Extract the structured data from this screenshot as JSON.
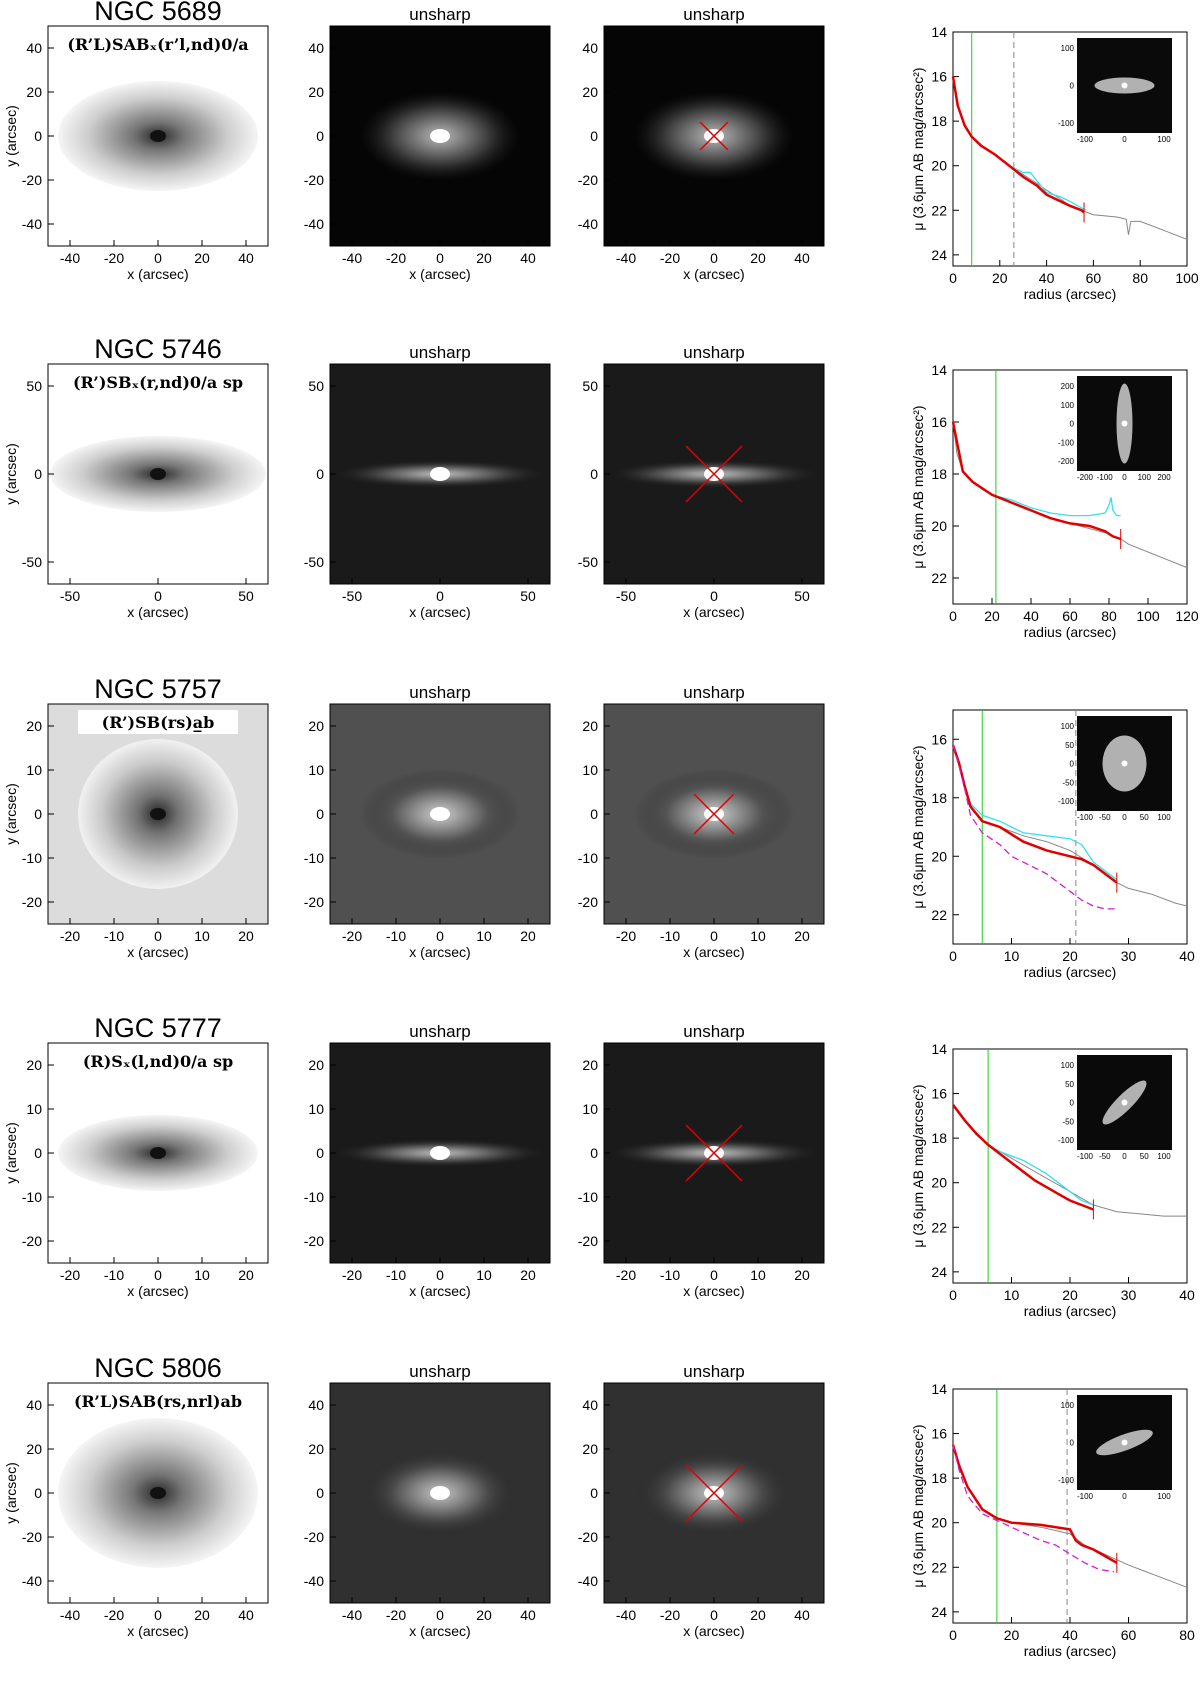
{
  "rows": [
    {
      "galaxy": "NGC 5689",
      "morphology": "(R’L)SABₓ(r’l,nd)0/a",
      "unsharp_label": "unsharp",
      "image_ticks_x": [
        "-40",
        "-20",
        "0",
        "20",
        "40"
      ],
      "image_ticks_y": [
        "40",
        "20",
        "0",
        "-20",
        "-40"
      ],
      "xlabel": "x (arcsec)",
      "ylabel": "y (arcsec)",
      "chart_data": {
        "type": "line",
        "xlabel": "radius (arcsec)",
        "ylabel": "μ (3.6μm AB mag/arcsec²)",
        "xlim": [
          0,
          100
        ],
        "ylim": [
          24.5,
          14
        ],
        "xticks": [
          "0",
          "20",
          "40",
          "60",
          "80",
          "100"
        ],
        "yticks": [
          "14",
          "16",
          "18",
          "20",
          "22",
          "24"
        ],
        "green_line_x": 8,
        "dashed_line_x": 26,
        "series": [
          {
            "color": "#888888",
            "x": [
              0,
              1,
              3,
              5,
              8,
              12,
              18,
              24,
              30,
              36,
              40,
              46,
              50,
              55,
              60,
              65,
              70,
              74,
              75,
              76,
              80,
              90,
              100
            ],
            "y": [
              16,
              16.6,
              17.6,
              18.2,
              18.7,
              19.1,
              19.5,
              20,
              20.4,
              20.8,
              21.1,
              21.5,
              21.8,
              22.0,
              22.2,
              22.25,
              22.3,
              22.4,
              23.1,
              22.5,
              22.5,
              22.9,
              23.3
            ]
          },
          {
            "color": "#33e0f0",
            "x": [
              0,
              2,
              5,
              8,
              12,
              18,
              24,
              28,
              30,
              33,
              36,
              40,
              46,
              50,
              55,
              57
            ],
            "y": [
              16,
              17.3,
              18.2,
              18.7,
              19.1,
              19.5,
              20.0,
              20.2,
              20.3,
              20.3,
              20.7,
              21.2,
              21.4,
              21.6,
              21.9,
              22.0
            ]
          },
          {
            "color": "#e00000",
            "x": [
              0,
              2,
              5,
              8,
              12,
              18,
              24,
              30,
              36,
              40,
              46,
              50,
              55,
              56
            ],
            "y": [
              16,
              17.3,
              18.2,
              18.7,
              19.1,
              19.5,
              20.0,
              20.5,
              20.9,
              21.3,
              21.6,
              21.8,
              22.0,
              22.1
            ]
          }
        ],
        "inset_ticks_x": [
          "-100",
          "0",
          "100"
        ],
        "inset_ticks_y": [
          "100",
          "0",
          "-100"
        ]
      }
    },
    {
      "galaxy": "NGC 5746",
      "morphology": "(R’)SBₓ(r,nd)0/a sp",
      "unsharp_label": "unsharp",
      "image_ticks_x": [
        "-50",
        "0",
        "50"
      ],
      "image_ticks_y": [
        "50",
        "0",
        "-50"
      ],
      "xlabel": "x (arcsec)",
      "ylabel": "y (arcsec)",
      "chart_data": {
        "type": "line",
        "xlabel": "radius (arcsec)",
        "ylabel": "μ (3.6μm AB mag/arcsec²)",
        "xlim": [
          0,
          120
        ],
        "ylim": [
          23,
          14
        ],
        "xticks": [
          "0",
          "20",
          "40",
          "60",
          "80",
          "100",
          "120"
        ],
        "yticks": [
          "14",
          "16",
          "18",
          "20",
          "22"
        ],
        "green_line_x": 22,
        "series": [
          {
            "color": "#888888",
            "x": [
              0,
              2,
              5,
              10,
              15,
              20,
              30,
              40,
              50,
              60,
              70,
              80,
              86,
              90,
              100,
              110,
              120
            ],
            "y": [
              16,
              17.2,
              17.9,
              18.3,
              18.6,
              18.8,
              19.1,
              19.4,
              19.7,
              19.9,
              20.1,
              20.3,
              20.5,
              20.7,
              21.0,
              21.3,
              21.6
            ]
          },
          {
            "color": "#33e0f0",
            "x": [
              0,
              5,
              10,
              20,
              30,
              40,
              50,
              60,
              70,
              78,
              80,
              81,
              82,
              84,
              86
            ],
            "y": [
              16,
              17.9,
              18.3,
              18.8,
              19.0,
              19.3,
              19.5,
              19.6,
              19.6,
              19.5,
              19.2,
              18.9,
              19.4,
              19.6,
              19.6
            ]
          },
          {
            "color": "#e00000",
            "x": [
              0,
              5,
              10,
              20,
              30,
              40,
              50,
              60,
              70,
              78,
              82,
              86
            ],
            "y": [
              16,
              17.9,
              18.3,
              18.8,
              19.1,
              19.4,
              19.7,
              19.9,
              20.0,
              20.2,
              20.4,
              20.5
            ]
          }
        ],
        "inset_ticks_x": [
          "-200",
          "-100",
          "0",
          "100",
          "200"
        ],
        "inset_ticks_y": [
          "200",
          "100",
          "0",
          "-100",
          "-200"
        ]
      }
    },
    {
      "galaxy": "NGC 5757",
      "morphology": "(R’)SB(rs)a̲b",
      "unsharp_label": "unsharp",
      "image_ticks_x": [
        "-20",
        "-10",
        "0",
        "10",
        "20"
      ],
      "image_ticks_y": [
        "20",
        "10",
        "0",
        "-10",
        "-20"
      ],
      "xlabel": "x (arcsec)",
      "ylabel": "y (arcsec)",
      "chart_data": {
        "type": "line",
        "xlabel": "radius (arcsec)",
        "ylabel": "μ (3.6μm AB mag/arcsec²)",
        "xlim": [
          0,
          40
        ],
        "ylim": [
          23,
          15
        ],
        "xticks": [
          "0",
          "10",
          "20",
          "30",
          "40"
        ],
        "yticks": [
          "16",
          "18",
          "20",
          "22"
        ],
        "green_line_x": 5,
        "dashed_line_x": 21,
        "series": [
          {
            "color": "#888888",
            "x": [
              0,
              1,
              2,
              3,
              5,
              8,
              12,
              16,
              20,
              24,
              28,
              30,
              34,
              38,
              40
            ],
            "y": [
              16.2,
              16.8,
              17.6,
              18.3,
              18.8,
              19.0,
              19.3,
              19.5,
              19.8,
              20.3,
              20.9,
              21.1,
              21.3,
              21.6,
              21.7
            ]
          },
          {
            "color": "#33e0f0",
            "x": [
              0,
              1,
              2,
              3,
              5,
              8,
              12,
              16,
              20,
              22,
              24,
              28
            ],
            "y": [
              16.2,
              16.8,
              17.6,
              18.2,
              18.6,
              18.8,
              19.2,
              19.3,
              19.4,
              19.6,
              20.2,
              20.8
            ]
          },
          {
            "color": "#e00000",
            "x": [
              0,
              1,
              2,
              3,
              5,
              8,
              12,
              16,
              20,
              22,
              24,
              28
            ],
            "y": [
              16.2,
              16.8,
              17.6,
              18.3,
              18.8,
              19.0,
              19.5,
              19.8,
              20.0,
              20.1,
              20.3,
              20.9
            ]
          },
          {
            "color": "#d020d0",
            "dashed": true,
            "x": [
              0,
              1,
              2,
              3,
              5,
              8,
              10,
              12,
              14,
              16,
              18,
              20,
              22,
              24,
              26,
              28
            ],
            "y": [
              16.2,
              16.9,
              17.7,
              18.6,
              19.2,
              19.6,
              20.0,
              20.2,
              20.4,
              20.6,
              20.9,
              21.2,
              21.5,
              21.7,
              21.8,
              21.8
            ]
          }
        ],
        "inset_ticks_x": [
          "-100",
          "-50",
          "0",
          "50",
          "100"
        ],
        "inset_ticks_y": [
          "100",
          "50",
          "0",
          "-50",
          "-100"
        ]
      }
    },
    {
      "galaxy": "NGC 5777",
      "morphology": "(R)Sₓ(l,nd)0/a sp",
      "unsharp_label": "unsharp",
      "image_ticks_x": [
        "-20",
        "-10",
        "0",
        "10",
        "20"
      ],
      "image_ticks_y": [
        "20",
        "10",
        "0",
        "-10",
        "-20"
      ],
      "xlabel": "x (arcsec)",
      "ylabel": "y (arcsec)",
      "chart_data": {
        "type": "line",
        "xlabel": "radius (arcsec)",
        "ylabel": "μ (3.6μm AB mag/arcsec²)",
        "xlim": [
          0,
          40
        ],
        "ylim": [
          24.5,
          14
        ],
        "xticks": [
          "0",
          "10",
          "20",
          "30",
          "40"
        ],
        "yticks": [
          "14",
          "16",
          "18",
          "20",
          "22",
          "24"
        ],
        "green_line_x": 6,
        "series": [
          {
            "color": "#888888",
            "x": [
              0,
              2,
              4,
              6,
              8,
              12,
              16,
              20,
              24,
              28,
              32,
              36,
              40
            ],
            "y": [
              16.5,
              17.2,
              17.8,
              18.3,
              18.6,
              19.2,
              19.8,
              20.4,
              21.0,
              21.3,
              21.4,
              21.5,
              21.5
            ]
          },
          {
            "color": "#33e0f0",
            "x": [
              0,
              2,
              4,
              6,
              8,
              10,
              12,
              14,
              16,
              18,
              20,
              22,
              24
            ],
            "y": [
              16.5,
              17.2,
              17.8,
              18.3,
              18.6,
              18.8,
              19.0,
              19.3,
              19.6,
              20.0,
              20.4,
              20.8,
              21.0
            ]
          },
          {
            "color": "#e00000",
            "x": [
              0,
              2,
              4,
              6,
              8,
              10,
              12,
              14,
              16,
              18,
              20,
              22,
              24
            ],
            "y": [
              16.5,
              17.2,
              17.8,
              18.3,
              18.7,
              19.1,
              19.5,
              19.9,
              20.2,
              20.5,
              20.8,
              21.0,
              21.2
            ]
          }
        ],
        "inset_ticks_x": [
          "-100",
          "-50",
          "0",
          "50",
          "100"
        ],
        "inset_ticks_y": [
          "100",
          "50",
          "0",
          "-50",
          "-100"
        ]
      }
    },
    {
      "galaxy": "NGC 5806",
      "morphology": "(R’L)SAB(rs,nrl)ab",
      "unsharp_label": "unsharp",
      "image_ticks_x": [
        "-40",
        "-20",
        "0",
        "20",
        "40"
      ],
      "image_ticks_y": [
        "40",
        "20",
        "0",
        "-20",
        "-40"
      ],
      "xlabel": "x (arcsec)",
      "ylabel": "y (arcsec)",
      "chart_data": {
        "type": "line",
        "xlabel": "radius (arcsec)",
        "ylabel": "μ (3.6μm AB mag/arcsec²)",
        "xlim": [
          0,
          80
        ],
        "ylim": [
          24.5,
          14
        ],
        "xticks": [
          "0",
          "20",
          "40",
          "60",
          "80"
        ],
        "yticks": [
          "14",
          "16",
          "18",
          "20",
          "22",
          "24"
        ],
        "green_line_x": 15,
        "dashed_line_x": 39,
        "series": [
          {
            "color": "#888888",
            "x": [
              0,
              2,
              5,
              10,
              15,
              20,
              30,
              40,
              45,
              50,
              55,
              60,
              70,
              80
            ],
            "y": [
              16.5,
              17.4,
              18.4,
              19.4,
              19.8,
              20.0,
              20.2,
              20.5,
              21.0,
              21.3,
              21.6,
              21.9,
              22.4,
              22.9
            ]
          },
          {
            "color": "#e00000",
            "x": [
              0,
              2,
              5,
              10,
              15,
              20,
              30,
              40,
              42,
              44,
              48,
              52,
              56
            ],
            "y": [
              16.5,
              17.4,
              18.4,
              19.4,
              19.8,
              20.0,
              20.1,
              20.3,
              20.8,
              21.0,
              21.2,
              21.5,
              21.8
            ]
          },
          {
            "color": "#d020d0",
            "dashed": true,
            "x": [
              0,
              2,
              5,
              10,
              15,
              20,
              25,
              30,
              35,
              40,
              45,
              50,
              55
            ],
            "y": [
              16.5,
              17.6,
              18.8,
              19.6,
              19.9,
              20.2,
              20.5,
              20.8,
              21.0,
              21.4,
              21.8,
              22.1,
              22.2
            ]
          }
        ],
        "inset_ticks_x": [
          "-100",
          "0",
          "100"
        ],
        "inset_ticks_y": [
          "100",
          "0",
          "-100"
        ]
      }
    }
  ]
}
